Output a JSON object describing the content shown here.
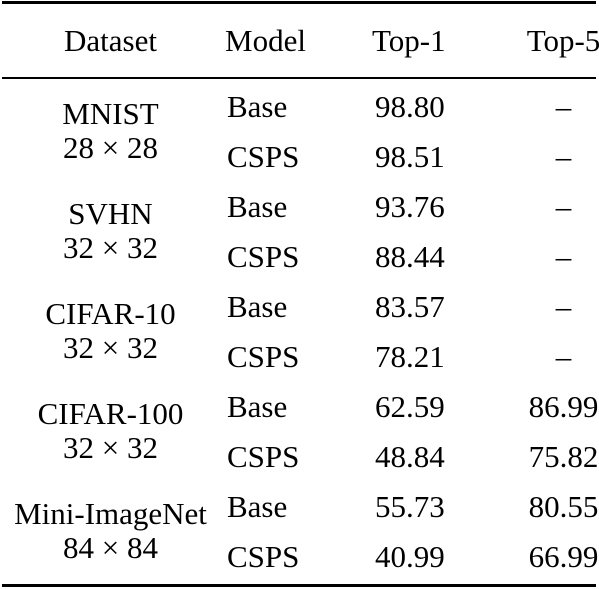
{
  "header": {
    "dataset": "Dataset",
    "model": "Model",
    "top1": "Top-1",
    "top5": "Top-5"
  },
  "rows": [
    {
      "dataset": "MNIST",
      "resolution": "28 × 28",
      "entries": [
        {
          "model": "Base",
          "top1": "98.80",
          "top5": "–"
        },
        {
          "model": "CSPS",
          "top1": "98.51",
          "top5": "–"
        }
      ]
    },
    {
      "dataset": "SVHN",
      "resolution": "32 × 32",
      "entries": [
        {
          "model": "Base",
          "top1": "93.76",
          "top5": "–"
        },
        {
          "model": "CSPS",
          "top1": "88.44",
          "top5": "–"
        }
      ]
    },
    {
      "dataset": "CIFAR-10",
      "resolution": "32 × 32",
      "entries": [
        {
          "model": "Base",
          "top1": "83.57",
          "top5": "–"
        },
        {
          "model": "CSPS",
          "top1": "78.21",
          "top5": "–"
        }
      ]
    },
    {
      "dataset": "CIFAR-100",
      "resolution": "32 × 32",
      "entries": [
        {
          "model": "Base",
          "top1": "62.59",
          "top5": "86.99"
        },
        {
          "model": "CSPS",
          "top1": "48.84",
          "top5": "75.82"
        }
      ]
    },
    {
      "dataset": "Mini-ImageNet",
      "resolution": "84 × 84",
      "entries": [
        {
          "model": "Base",
          "top1": "55.73",
          "top5": "80.55"
        },
        {
          "model": "CSPS",
          "top1": "40.99",
          "top5": "66.99"
        }
      ]
    }
  ]
}
